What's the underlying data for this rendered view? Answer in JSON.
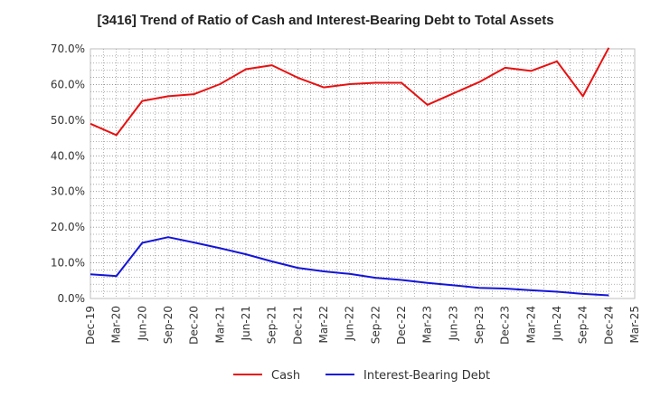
{
  "chart_data": {
    "type": "line",
    "title": "[3416]  Trend of Ratio of Cash and Interest-Bearing Debt to Total Assets",
    "xlabel": "",
    "ylabel": "",
    "x": [
      "Dec-19",
      "Mar-20",
      "Jun-20",
      "Sep-20",
      "Dec-20",
      "Mar-21",
      "Jun-21",
      "Sep-21",
      "Dec-21",
      "Mar-22",
      "Jun-22",
      "Sep-22",
      "Dec-22",
      "Mar-23",
      "Jun-23",
      "Sep-23",
      "Dec-23",
      "Mar-24",
      "Jun-24",
      "Sep-24",
      "Dec-24",
      "Mar-25"
    ],
    "ylim": [
      0,
      70
    ],
    "yticks": [
      0,
      10,
      20,
      30,
      40,
      50,
      60,
      70
    ],
    "ytick_labels": [
      "0.0%",
      "10.0%",
      "20.0%",
      "30.0%",
      "40.0%",
      "50.0%",
      "60.0%",
      "70.0%"
    ],
    "grid": true,
    "legend_position": "bottom",
    "series": [
      {
        "name": "Cash",
        "color": "#e81010",
        "values": [
          49.0,
          45.8,
          55.4,
          56.7,
          57.3,
          60.1,
          64.3,
          65.4,
          61.9,
          59.2,
          60.1,
          60.5,
          60.5,
          54.3,
          57.5,
          60.7,
          64.7,
          63.8,
          66.5,
          56.7,
          70.3,
          null
        ]
      },
      {
        "name": "Interest-Bearing Debt",
        "color": "#1414d8",
        "values": [
          6.8,
          6.3,
          15.6,
          17.2,
          15.7,
          14.1,
          12.4,
          10.4,
          8.6,
          7.6,
          6.9,
          5.8,
          5.2,
          4.4,
          3.7,
          3.0,
          2.8,
          2.3,
          1.9,
          1.3,
          0.9,
          null
        ]
      }
    ]
  }
}
